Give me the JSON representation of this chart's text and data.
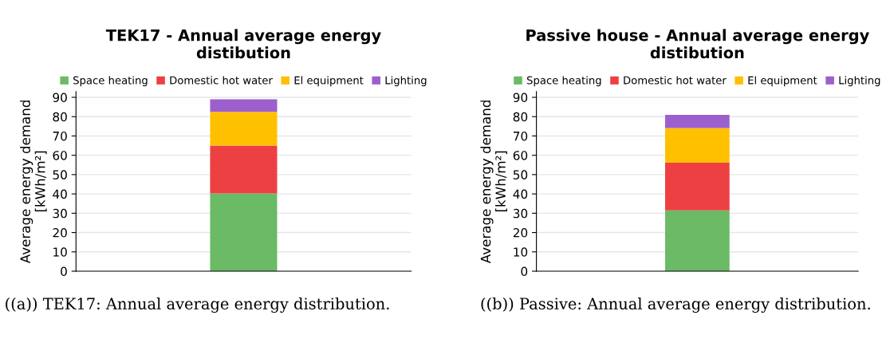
{
  "chart_data": [
    {
      "type": "bar",
      "title": "TEK17 - Annual average energy\ndistibution",
      "ylabel": "Average energy demand\n[kWh/m²]",
      "categories": [
        null
      ],
      "stacked": true,
      "ylim": [
        0,
        93
      ],
      "yticks": [
        0,
        10,
        20,
        30,
        40,
        50,
        60,
        70,
        80,
        90
      ],
      "grid": "y",
      "legend": "top",
      "series": [
        {
          "name": "Space heating",
          "color": "#6aba66",
          "values": [
            40.3
          ]
        },
        {
          "name": "Domestic hot water",
          "color": "#ec4043",
          "values": [
            24.7
          ]
        },
        {
          "name": "El equipment",
          "color": "#ffc000",
          "values": [
            17.5
          ]
        },
        {
          "name": "Lighting",
          "color": "#9c5fce",
          "values": [
            6.5
          ]
        }
      ],
      "annotations": [
        "((a)) TEK17: Annual average energy distribution."
      ]
    },
    {
      "type": "bar",
      "title": "Passive house - Annual average energy\ndistibution",
      "ylabel": "Average energy demand\n[kWh/m²]",
      "categories": [
        null
      ],
      "stacked": true,
      "ylim": [
        0,
        93
      ],
      "yticks": [
        0,
        10,
        20,
        30,
        40,
        50,
        60,
        70,
        80,
        90
      ],
      "grid": "y",
      "legend": "top",
      "series": [
        {
          "name": "Space heating",
          "color": "#6aba66",
          "values": [
            31.5
          ]
        },
        {
          "name": "Domestic hot water",
          "color": "#ec4043",
          "values": [
            24.7
          ]
        },
        {
          "name": "El equipment",
          "color": "#ffc000",
          "values": [
            17.9
          ]
        },
        {
          "name": "Lighting",
          "color": "#9c5fce",
          "values": [
            6.8
          ]
        }
      ],
      "annotations": [
        "((b)) Passive: Annual average energy distribution."
      ]
    }
  ]
}
